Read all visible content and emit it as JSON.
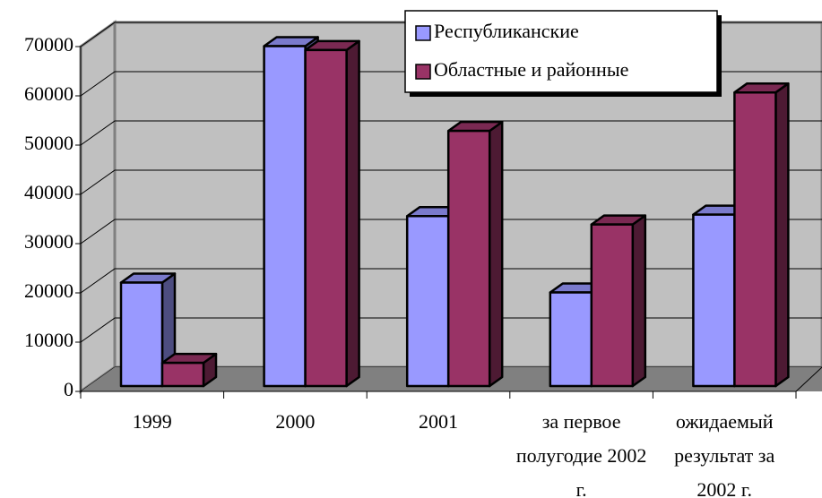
{
  "chart_data": {
    "type": "bar3d",
    "categories": [
      "1999",
      "2000",
      "2001",
      "за первое полугодие 2002 г.",
      "ожидаемый результат за 2002 г."
    ],
    "series": [
      {
        "name": "Республиканские",
        "color": "#9999ff",
        "values": [
          21000,
          69000,
          34500,
          19000,
          34800
        ]
      },
      {
        "name": "Областные и районные",
        "color": "#993366",
        "values": [
          4700,
          68200,
          51800,
          32800,
          59600
        ]
      }
    ],
    "ylim": [
      0,
      70000
    ],
    "yticks": [
      0,
      10000,
      20000,
      30000,
      40000,
      50000,
      60000,
      70000
    ],
    "grid": true,
    "legend": "top-right"
  }
}
